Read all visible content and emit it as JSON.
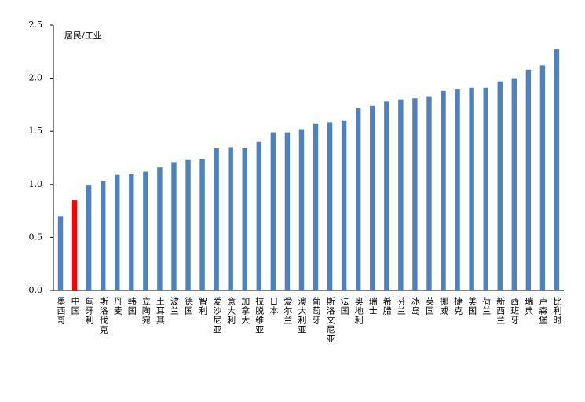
{
  "chart_data": {
    "type": "bar",
    "annotation": "居民/工业",
    "categories": [
      "墨西哥",
      "中国",
      "匈牙利",
      "斯洛伐克",
      "丹麦",
      "韩国",
      "立陶宛",
      "土耳其",
      "波兰",
      "德国",
      "智利",
      "爱沙尼亚",
      "意大利",
      "加拿大",
      "拉脱维亚",
      "日本",
      "爱尔兰",
      "澳大利亚",
      "葡萄牙",
      "斯洛文尼亚",
      "法国",
      "奥地利",
      "瑞士",
      "希腊",
      "芬兰",
      "冰岛",
      "英国",
      "挪威",
      "捷克",
      "美国",
      "荷兰",
      "新西兰",
      "西班牙",
      "瑞典",
      "卢森堡",
      "比利时"
    ],
    "values": [
      0.7,
      0.85,
      0.99,
      1.03,
      1.09,
      1.1,
      1.12,
      1.16,
      1.21,
      1.23,
      1.24,
      1.34,
      1.35,
      1.34,
      1.4,
      1.49,
      1.49,
      1.52,
      1.57,
      1.58,
      1.6,
      1.72,
      1.74,
      1.78,
      1.8,
      1.81,
      1.83,
      1.88,
      1.9,
      1.91,
      1.91,
      1.97,
      2.0,
      2.08,
      2.12,
      2.27
    ],
    "colors": [
      "#4f81bd",
      "#ff0000",
      "#4f81bd",
      "#4f81bd",
      "#4f81bd",
      "#4f81bd",
      "#4f81bd",
      "#4f81bd",
      "#4f81bd",
      "#4f81bd",
      "#4f81bd",
      "#4f81bd",
      "#4f81bd",
      "#4f81bd",
      "#4f81bd",
      "#4f81bd",
      "#4f81bd",
      "#4f81bd",
      "#4f81bd",
      "#4f81bd",
      "#4f81bd",
      "#4f81bd",
      "#4f81bd",
      "#4f81bd",
      "#4f81bd",
      "#4f81bd",
      "#4f81bd",
      "#4f81bd",
      "#4f81bd",
      "#4f81bd",
      "#4f81bd",
      "#4f81bd",
      "#4f81bd",
      "#4f81bd",
      "#4f81bd",
      "#4f81bd"
    ],
    "ylim": [
      0,
      2.5
    ],
    "yticks": [
      {
        "value": 0,
        "label": "0.0"
      },
      0.5,
      {
        "value": 1,
        "label": "1.0"
      },
      1.5,
      {
        "value": 2,
        "label": "2.0"
      },
      2.5
    ],
    "grid": false
  }
}
